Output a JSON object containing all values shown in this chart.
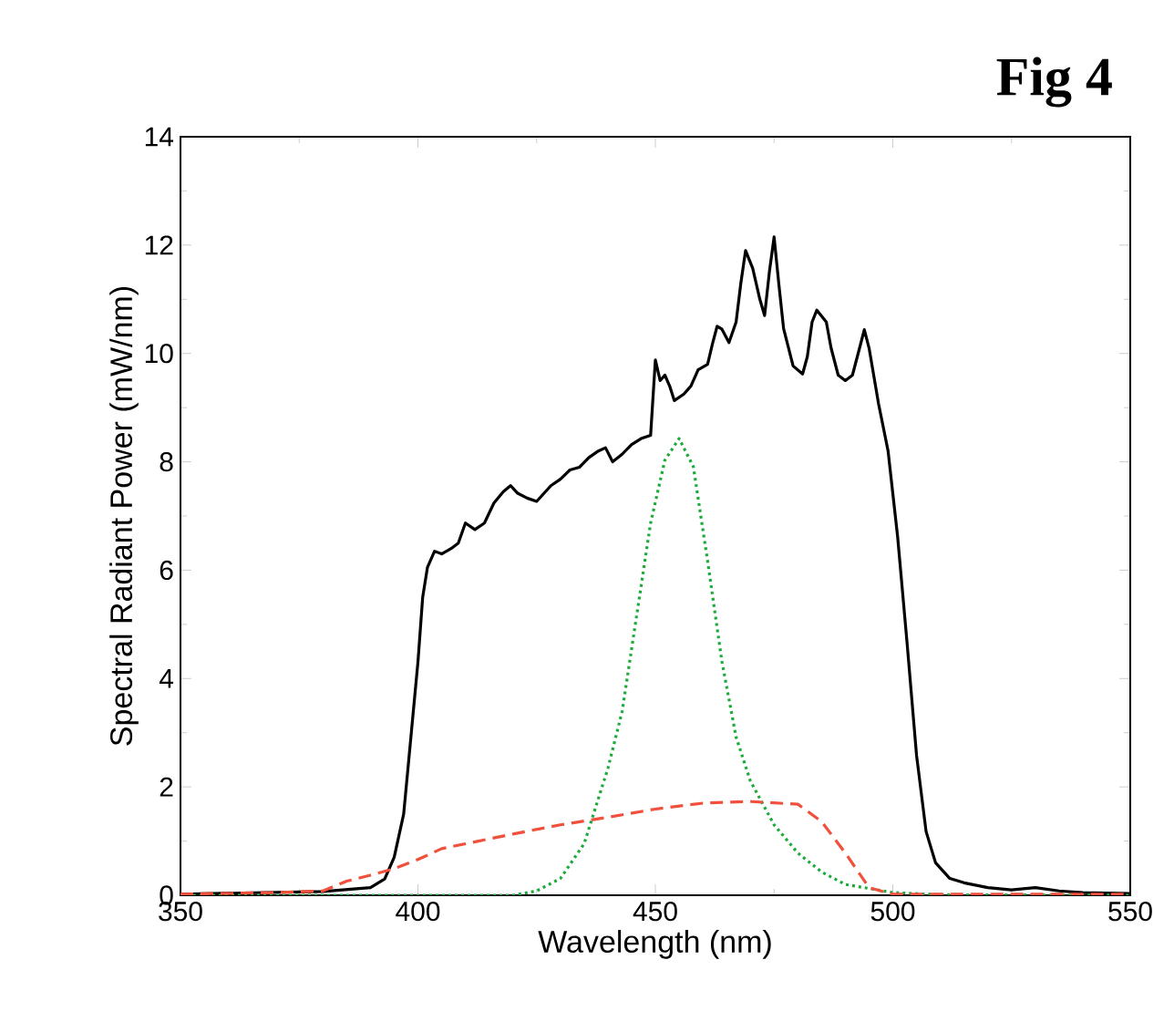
{
  "chart_data": {
    "type": "line",
    "title": "Fig 4",
    "xlabel": "Wavelength (nm)",
    "ylabel": "Spectral Radiant Power (mW/nm)",
    "xlim": [
      350,
      550
    ],
    "xticks": [
      350,
      400,
      450,
      500,
      550
    ],
    "ylim": [
      0,
      14
    ],
    "yticks": [
      0,
      2,
      4,
      6,
      8,
      10,
      12,
      14
    ],
    "series": [
      {
        "color": "#000000",
        "line_style": "solid",
        "x": [
          350,
          380,
          390,
          393,
          395,
          397,
          398.5,
          400,
          401,
          402,
          403.5,
          405,
          407,
          408.5,
          410,
          412,
          414,
          416,
          418,
          419.5,
          421,
          423,
          425,
          428,
          430,
          432,
          434,
          436,
          438,
          439.5,
          441,
          443,
          445,
          447,
          449,
          450,
          451,
          452,
          453,
          454,
          456,
          457.5,
          459,
          461,
          462,
          463,
          464,
          465.5,
          467,
          468,
          469,
          470.5,
          472,
          473,
          474,
          475,
          476,
          477,
          479,
          481,
          482,
          483,
          484,
          486,
          487,
          488.5,
          490,
          491.5,
          493,
          494,
          495,
          497,
          499,
          501,
          503,
          505,
          507,
          509,
          512,
          515,
          520,
          525,
          530,
          535,
          540,
          550
        ],
        "values": [
          0.02,
          0.07,
          0.14,
          0.3,
          0.7,
          1.5,
          2.9,
          4.3,
          5.5,
          6.05,
          6.35,
          6.3,
          6.4,
          6.5,
          6.87,
          6.75,
          6.87,
          7.24,
          7.45,
          7.56,
          7.42,
          7.33,
          7.27,
          7.56,
          7.68,
          7.85,
          7.9,
          8.08,
          8.2,
          8.26,
          8.0,
          8.14,
          8.32,
          8.43,
          8.49,
          9.88,
          9.5,
          9.6,
          9.4,
          9.13,
          9.25,
          9.4,
          9.7,
          9.8,
          10.17,
          10.5,
          10.45,
          10.2,
          10.58,
          11.3,
          11.9,
          11.57,
          11.0,
          10.7,
          11.5,
          12.15,
          11.28,
          10.46,
          9.77,
          9.62,
          9.94,
          10.58,
          10.8,
          10.58,
          10.1,
          9.6,
          9.5,
          9.6,
          10.1,
          10.44,
          10.1,
          9.07,
          8.2,
          6.63,
          4.66,
          2.58,
          1.18,
          0.6,
          0.31,
          0.23,
          0.14,
          0.1,
          0.14,
          0.08,
          0.05,
          0.03
        ]
      },
      {
        "color": "#1aab3a",
        "line_style": "dotted",
        "x": [
          350,
          410,
          420,
          425,
          430,
          435,
          440,
          443,
          446,
          449,
          452,
          455,
          458,
          461,
          464,
          467,
          470,
          475,
          480,
          485,
          490,
          500,
          510,
          550
        ],
        "values": [
          0,
          0,
          0,
          0.08,
          0.31,
          0.95,
          2.34,
          3.39,
          5.13,
          6.87,
          8.03,
          8.43,
          7.91,
          6.17,
          4.32,
          2.92,
          2.11,
          1.3,
          0.78,
          0.43,
          0.2,
          0.05,
          0.01,
          0
        ]
      },
      {
        "color": "#f0503c",
        "line_style": "dashed",
        "x": [
          350,
          370,
          380,
          385,
          390,
          395,
          400,
          405,
          410,
          420,
          430,
          440,
          450,
          460,
          470,
          480,
          485,
          490,
          495,
          500,
          550
        ],
        "values": [
          0.02,
          0.05,
          0.08,
          0.26,
          0.37,
          0.49,
          0.66,
          0.86,
          0.95,
          1.13,
          1.3,
          1.44,
          1.59,
          1.7,
          1.73,
          1.68,
          1.36,
          0.78,
          0.14,
          0.02,
          0.02
        ]
      }
    ]
  }
}
